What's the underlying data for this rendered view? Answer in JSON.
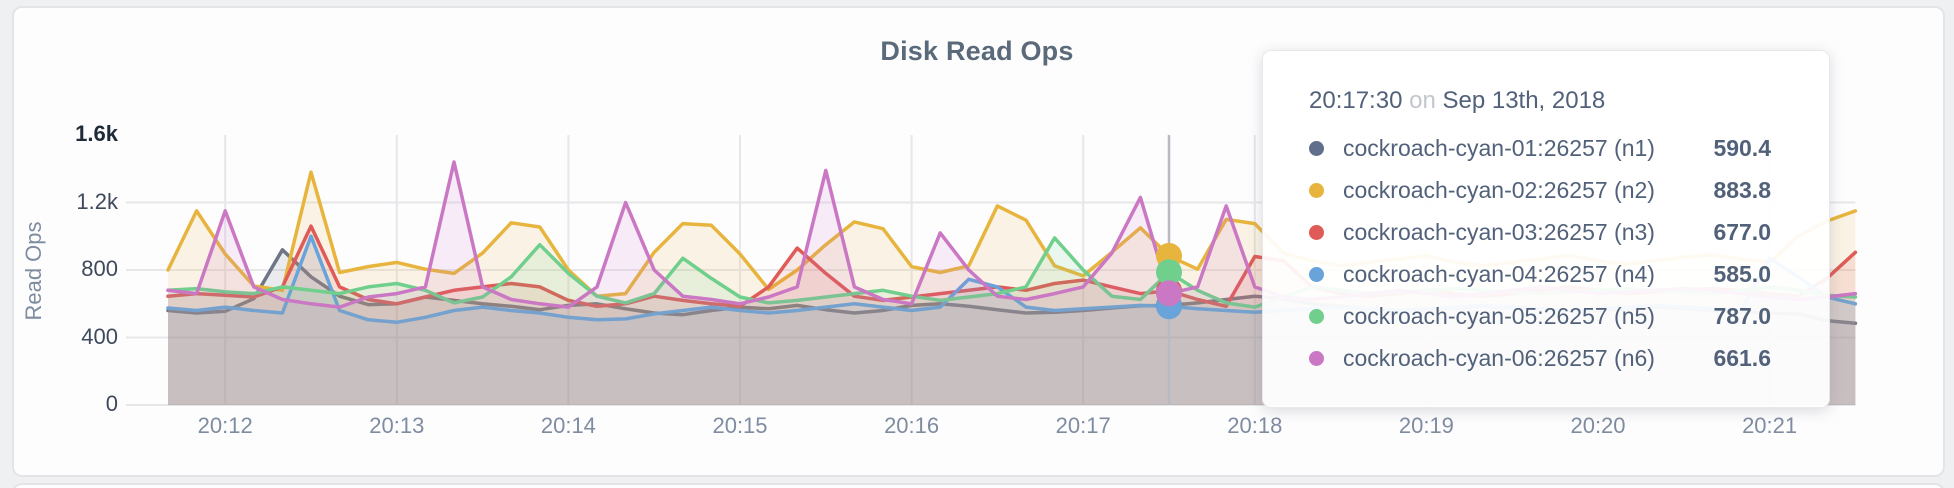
{
  "page": {
    "background": "#eff0f2",
    "card_background": "#fdfdfe",
    "border_color": "#e4e4e7"
  },
  "chart": {
    "title": "Disk Read Ops",
    "ylabel": "Read Ops",
    "gridline_color": "#e7e7ea",
    "crosshair_color": "#b7babf"
  },
  "tooltip": {
    "time": "20:17:30",
    "on_word": "on",
    "date": "Sep 13th, 2018",
    "rows": [
      {
        "label": "cockroach-cyan-01:26257 (n1)",
        "value": "590.4",
        "color": "#60708c"
      },
      {
        "label": "cockroach-cyan-02:26257 (n2)",
        "value": "883.8",
        "color": "#e7b53e"
      },
      {
        "label": "cockroach-cyan-03:26257 (n3)",
        "value": "677.0",
        "color": "#df5b57"
      },
      {
        "label": "cockroach-cyan-04:26257 (n4)",
        "value": "585.0",
        "color": "#68a3d9"
      },
      {
        "label": "cockroach-cyan-05:26257 (n5)",
        "value": "787.0",
        "color": "#70cf8d"
      },
      {
        "label": "cockroach-cyan-06:26257 (n6)",
        "value": "661.6",
        "color": "#ca77c4"
      }
    ]
  },
  "chart_data": {
    "type": "area",
    "title": "Disk Read Ops",
    "ylabel": "Read Ops",
    "ylim": [
      0,
      1600
    ],
    "y_ticks": [
      {
        "label": "0",
        "value": 0
      },
      {
        "label": "400",
        "value": 400
      },
      {
        "label": "800",
        "value": 800
      },
      {
        "label": "1.2k",
        "value": 1200
      },
      {
        "label": "1.6k",
        "value": 1600
      }
    ],
    "x_ticks": [
      "20:12",
      "20:13",
      "20:14",
      "20:15",
      "20:16",
      "20:17",
      "20:18",
      "20:19",
      "20:20",
      "20:21"
    ],
    "x_start_time": "20:11:40",
    "x_step_seconds": 10,
    "grid": true,
    "legend_position": "tooltip-only",
    "hover": {
      "time": "20:17:30",
      "date": "Sep 13th, 2018",
      "index": 35
    },
    "series": [
      {
        "name": "cockroach-cyan-01:26257 (n1)",
        "color": "#6e7686",
        "hover_value": 590.4,
        "values": [
          560,
          545,
          555,
          630,
          920,
          760,
          645,
          595,
          600,
          640,
          620,
          600,
          585,
          565,
          590,
          600,
          570,
          545,
          535,
          560,
          580,
          570,
          590,
          565,
          545,
          560,
          590,
          600,
          585,
          565,
          545,
          550,
          560,
          575,
          588,
          590.4,
          605,
          625,
          645,
          630,
          600,
          585,
          570,
          560,
          565,
          575,
          585,
          578,
          568,
          558,
          562,
          572,
          582,
          572,
          562,
          552,
          545,
          540,
          500,
          485
        ]
      },
      {
        "name": "cockroach-cyan-02:26257 (n2)",
        "color": "#e7b53e",
        "hover_value": 883.8,
        "values": [
          800,
          1150,
          895,
          705,
          680,
          1380,
          785,
          820,
          845,
          805,
          780,
          900,
          1080,
          1055,
          800,
          645,
          660,
          905,
          1075,
          1065,
          895,
          685,
          800,
          950,
          1085,
          1045,
          820,
          785,
          825,
          1180,
          1095,
          825,
          765,
          905,
          1050,
          883.8,
          805,
          1100,
          1075,
          900,
          855,
          825,
          845,
          865,
          885,
          845,
          825,
          845,
          865,
          885,
          855,
          835,
          855,
          875,
          890,
          865,
          845,
          1000,
          1090,
          1150
        ]
      },
      {
        "name": "cockroach-cyan-03:26257 (n3)",
        "color": "#df5b57",
        "hover_value": 677.0,
        "values": [
          645,
          660,
          650,
          640,
          700,
          1060,
          700,
          625,
          600,
          640,
          680,
          700,
          720,
          700,
          620,
          585,
          600,
          645,
          620,
          600,
          585,
          700,
          930,
          780,
          645,
          620,
          640,
          660,
          680,
          700,
          680,
          720,
          740,
          700,
          660,
          677,
          625,
          585,
          880,
          855,
          700,
          660,
          645,
          660,
          680,
          660,
          645,
          660,
          680,
          700,
          680,
          660,
          670,
          680,
          690,
          680,
          660,
          645,
          750,
          905
        ]
      },
      {
        "name": "cockroach-cyan-04:26257 (n4)",
        "color": "#68a3d9",
        "hover_value": 585.0,
        "values": [
          575,
          560,
          580,
          560,
          545,
          1000,
          560,
          505,
          490,
          520,
          560,
          580,
          560,
          545,
          520,
          505,
          510,
          540,
          560,
          580,
          560,
          545,
          560,
          580,
          600,
          580,
          560,
          580,
          745,
          700,
          580,
          560,
          570,
          580,
          590,
          585,
          570,
          560,
          550,
          560,
          570,
          580,
          570,
          560,
          570,
          580,
          590,
          580,
          570,
          560,
          570,
          580,
          590,
          580,
          570,
          565,
          870,
          760,
          640,
          600
        ]
      },
      {
        "name": "cockroach-cyan-05:26257 (n5)",
        "color": "#70cf8d",
        "hover_value": 787.0,
        "values": [
          680,
          690,
          670,
          660,
          700,
          680,
          660,
          700,
          720,
          680,
          605,
          640,
          760,
          950,
          780,
          645,
          605,
          660,
          870,
          750,
          640,
          605,
          620,
          640,
          660,
          680,
          645,
          620,
          640,
          660,
          700,
          990,
          800,
          645,
          625,
          787,
          680,
          605,
          580,
          640,
          700,
          680,
          660,
          670,
          680,
          690,
          680,
          670,
          660,
          670,
          680,
          690,
          680,
          670,
          660,
          680,
          700,
          680,
          650,
          640
        ]
      },
      {
        "name": "cockroach-cyan-06:26257 (n6)",
        "color": "#ca77c4",
        "hover_value": 661.6,
        "values": [
          680,
          660,
          1150,
          700,
          625,
          600,
          580,
          640,
          660,
          700,
          1440,
          700,
          625,
          600,
          580,
          700,
          1200,
          800,
          645,
          625,
          600,
          640,
          700,
          1390,
          700,
          625,
          600,
          1020,
          800,
          645,
          625,
          660,
          700,
          900,
          1230,
          661.6,
          700,
          1180,
          700,
          640,
          625,
          640,
          660,
          680,
          660,
          640,
          660,
          680,
          700,
          680,
          660,
          670,
          680,
          690,
          680,
          660,
          640,
          625,
          640,
          660
        ]
      }
    ]
  }
}
